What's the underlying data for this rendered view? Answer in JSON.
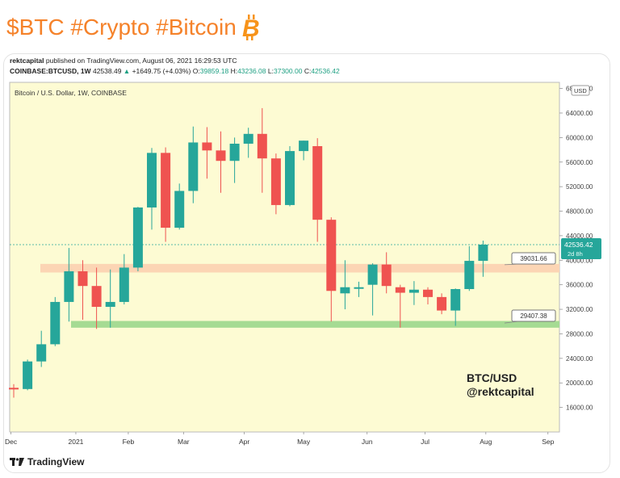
{
  "header": {
    "title": "$BTC #Crypto #Bitcoin",
    "icon": "bitcoin-icon"
  },
  "meta": {
    "author": "rektcapital",
    "published": "published on TradingView.com, August 06, 2021 16:29:53 UTC",
    "symbol": "COINBASE:BTCUSD, 1W",
    "last": "42538.49",
    "change_arrow": "▲",
    "change": "+1649.75 (+4.03%)",
    "o_label": "O:",
    "o": "39859.18",
    "h_label": "H:",
    "h": "43236.08",
    "l_label": "L:",
    "l": "37300.00",
    "c_label": "C:",
    "c": "42536.42"
  },
  "footer": {
    "brand": "TradingView"
  },
  "colors": {
    "up": "#26a69a",
    "down": "#ef5350",
    "bg": "#fdfbd3",
    "resistance": "#fcd5b4",
    "support": "#a5db93",
    "price_tag": "#26a69a"
  },
  "chart_data": {
    "type": "candlestick",
    "title": "Bitcoin / U.S. Dollar, 1W, COINBASE",
    "currency_label": "USD",
    "ylim": [
      12000,
      69000
    ],
    "yticks": [
      "16000.00",
      "20000.00",
      "24000.00",
      "28000.00",
      "32000.00",
      "36000.00",
      "40000.00",
      "44000.00",
      "48000.00",
      "52000.00",
      "56000.00",
      "60000.00",
      "64000.00",
      "68000.00"
    ],
    "xticks": [
      {
        "label": "Dec",
        "index": -0.2
      },
      {
        "label": "2021",
        "index": 4.5
      },
      {
        "label": "Feb",
        "index": 8.3
      },
      {
        "label": "Mar",
        "index": 12.3
      },
      {
        "label": "Apr",
        "index": 16.7
      },
      {
        "label": "May",
        "index": 21.0
      },
      {
        "label": "Jun",
        "index": 25.6
      },
      {
        "label": "Jul",
        "index": 29.8
      },
      {
        "label": "Aug",
        "index": 34.2
      },
      {
        "label": "Sep",
        "index": 38.7
      }
    ],
    "candles": [
      {
        "o": 19200,
        "h": 19800,
        "l": 17600,
        "c": 19000
      },
      {
        "o": 19000,
        "h": 23800,
        "l": 18800,
        "c": 23500
      },
      {
        "o": 23500,
        "h": 28500,
        "l": 22600,
        "c": 26300
      },
      {
        "o": 26300,
        "h": 34000,
        "l": 26000,
        "c": 33200
      },
      {
        "o": 33200,
        "h": 42000,
        "l": 30000,
        "c": 38200
      },
      {
        "o": 38200,
        "h": 40000,
        "l": 30300,
        "c": 35800
      },
      {
        "o": 35800,
        "h": 38800,
        "l": 28800,
        "c": 32400
      },
      {
        "o": 32400,
        "h": 38500,
        "l": 29000,
        "c": 33200
      },
      {
        "o": 33200,
        "h": 41000,
        "l": 32800,
        "c": 38800
      },
      {
        "o": 38800,
        "h": 48700,
        "l": 38200,
        "c": 48600
      },
      {
        "o": 48600,
        "h": 58300,
        "l": 45000,
        "c": 57500
      },
      {
        "o": 57500,
        "h": 58400,
        "l": 43000,
        "c": 45300
      },
      {
        "o": 45300,
        "h": 52500,
        "l": 45000,
        "c": 51300
      },
      {
        "o": 51300,
        "h": 61800,
        "l": 49300,
        "c": 59200
      },
      {
        "o": 59200,
        "h": 61700,
        "l": 53300,
        "c": 57900
      },
      {
        "o": 57900,
        "h": 61000,
        "l": 51000,
        "c": 56200
      },
      {
        "o": 56200,
        "h": 60000,
        "l": 52600,
        "c": 59000
      },
      {
        "o": 59000,
        "h": 61600,
        "l": 56700,
        "c": 60600
      },
      {
        "o": 60600,
        "h": 64800,
        "l": 51000,
        "c": 56600
      },
      {
        "o": 56600,
        "h": 57400,
        "l": 47500,
        "c": 49000
      },
      {
        "o": 49000,
        "h": 58600,
        "l": 48800,
        "c": 57800
      },
      {
        "o": 57800,
        "h": 59500,
        "l": 56300,
        "c": 59500
      },
      {
        "o": 58600,
        "h": 59900,
        "l": 43000,
        "c": 46600
      },
      {
        "o": 46600,
        "h": 47000,
        "l": 30000,
        "c": 35000
      },
      {
        "o": 34600,
        "h": 40000,
        "l": 32000,
        "c": 35600
      },
      {
        "o": 35600,
        "h": 36500,
        "l": 34000,
        "c": 35600
      },
      {
        "o": 36000,
        "h": 39500,
        "l": 31000,
        "c": 39300
      },
      {
        "o": 39300,
        "h": 41300,
        "l": 34600,
        "c": 35800
      },
      {
        "o": 35600,
        "h": 36000,
        "l": 29000,
        "c": 34700
      },
      {
        "o": 34700,
        "h": 36600,
        "l": 32700,
        "c": 35200
      },
      {
        "o": 35200,
        "h": 35600,
        "l": 32800,
        "c": 34000
      },
      {
        "o": 34000,
        "h": 34600,
        "l": 31200,
        "c": 31800
      },
      {
        "o": 31800,
        "h": 35400,
        "l": 29300,
        "c": 35300
      },
      {
        "o": 35300,
        "h": 42300,
        "l": 35000,
        "c": 39900
      },
      {
        "o": 39900,
        "h": 43200,
        "l": 37300,
        "c": 42540
      }
    ],
    "annotations": {
      "resistance_zone": [
        38000,
        39400
      ],
      "support_zone": [
        29000,
        30100
      ],
      "resistance_label": "39031.66",
      "support_label": "29407.38",
      "current_price": 42538.49,
      "price_tag": "42536.42",
      "price_tag_sub": "2d 8h",
      "watermark_line1": "BTC/USD",
      "watermark_line2": "@rektcapital"
    }
  }
}
